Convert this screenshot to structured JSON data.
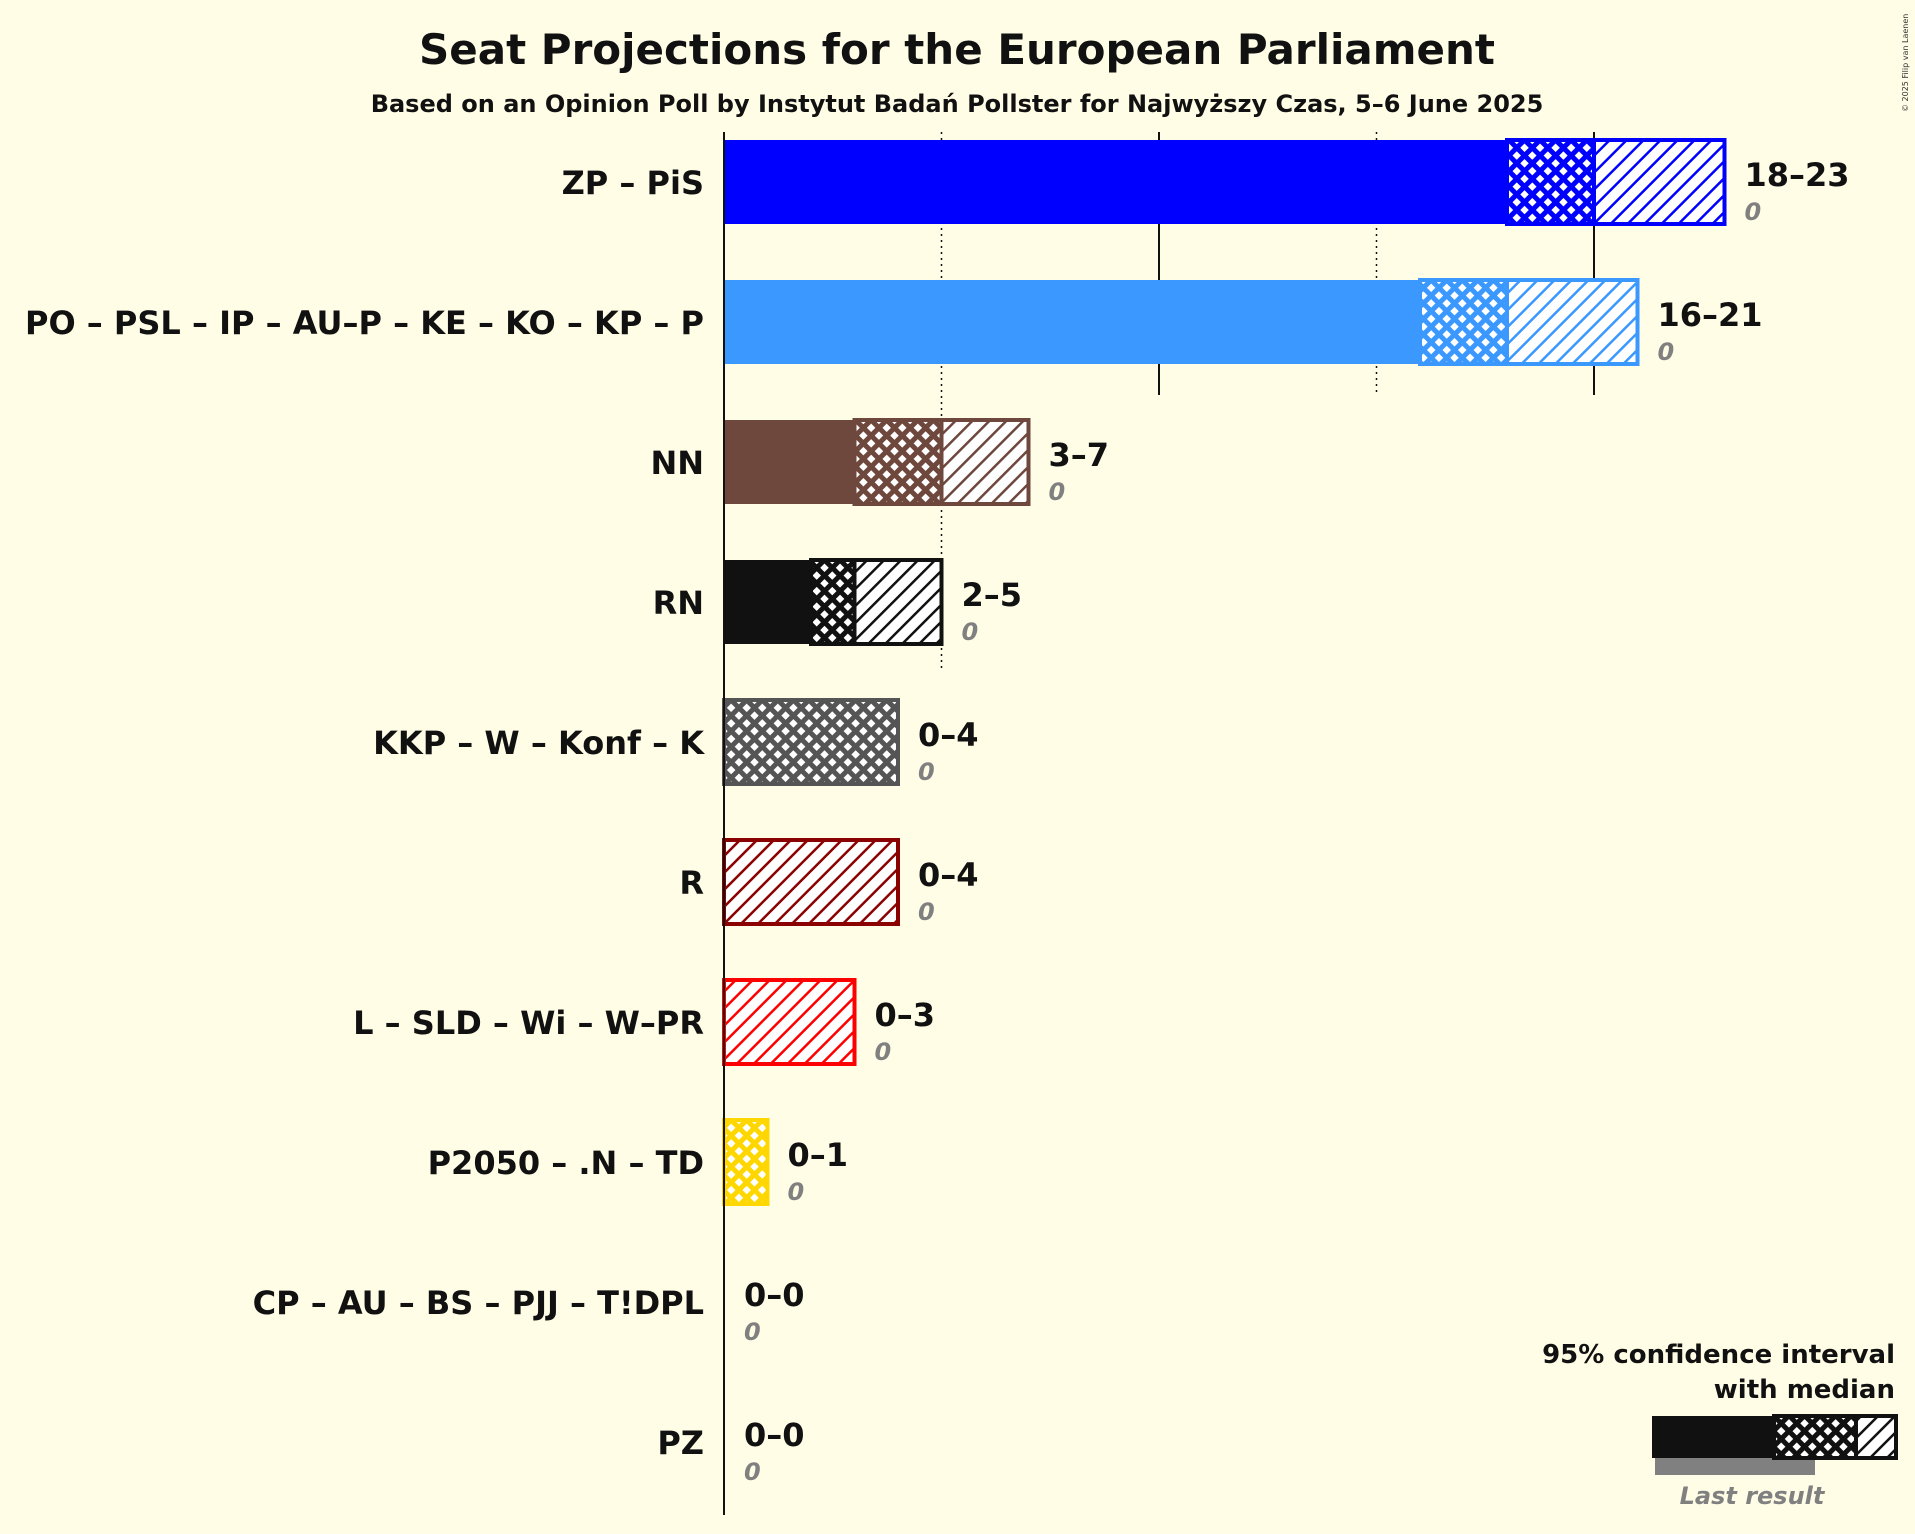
{
  "title": "Seat Projections for the European Parliament",
  "subtitle": "Based on an Opinion Poll by Instytut Badań Pollster for Najwyższy Czas, 5–6 June 2025",
  "copyright": "© 2025 Filip van Laenen",
  "legend": {
    "title_line1": "95% confidence interval",
    "title_line2": "with median",
    "last_result": "Last result"
  },
  "chart_data": {
    "type": "bar",
    "orientation": "horizontal",
    "title": "Seat Projections for the European Parliament",
    "subtitle": "Based on an Opinion Poll by Instytut Badań Pollster for Najwyższy Czas, 5–6 June 2025",
    "xlim": [
      0,
      23
    ],
    "gridlines": [
      5,
      10,
      15,
      20
    ],
    "parties": [
      {
        "name": "ZP – PiS",
        "low": 18,
        "median": 20,
        "high": 23,
        "range_label": "18–23",
        "last": 0,
        "last_label": "0",
        "color": "#0000FF"
      },
      {
        "name": "PO – PSL – IP – AU–P – KE – KO – KP – P",
        "low": 16,
        "median": 18,
        "high": 21,
        "range_label": "16–21",
        "last": 0,
        "last_label": "0",
        "color": "#3A98FF"
      },
      {
        "name": "NN",
        "low": 3,
        "median": 5,
        "high": 7,
        "range_label": "3–7",
        "last": 0,
        "last_label": "0",
        "color": "#6E473D"
      },
      {
        "name": "RN",
        "low": 2,
        "median": 3,
        "high": 5,
        "range_label": "2–5",
        "last": 0,
        "last_label": "0",
        "color": "#111111"
      },
      {
        "name": "KKP – W – Konf – K",
        "low": 0,
        "median": 4,
        "high": 4,
        "range_label": "0–4",
        "last": 0,
        "last_label": "0",
        "color": "#555555"
      },
      {
        "name": "R",
        "low": 0,
        "median": 0,
        "high": 4,
        "range_label": "0–4",
        "last": 0,
        "last_label": "0",
        "color": "#8B0000"
      },
      {
        "name": "L – SLD – Wi – W–PR",
        "low": 0,
        "median": 0,
        "high": 3,
        "range_label": "0–3",
        "last": 0,
        "last_label": "0",
        "color": "#FF0000"
      },
      {
        "name": "P2050 – .N – TD",
        "low": 0,
        "median": 1,
        "high": 1,
        "range_label": "0–1",
        "last": 0,
        "last_label": "0",
        "color": "#FFD700"
      },
      {
        "name": "CP – AU – BS – PJJ – T!DPL",
        "low": 0,
        "median": 0,
        "high": 0,
        "range_label": "0–0",
        "last": 0,
        "last_label": "0",
        "color": "#888888"
      },
      {
        "name": "PZ",
        "low": 0,
        "median": 0,
        "high": 0,
        "range_label": "0–0",
        "last": 0,
        "last_label": "0",
        "color": "#888888"
      }
    ]
  }
}
